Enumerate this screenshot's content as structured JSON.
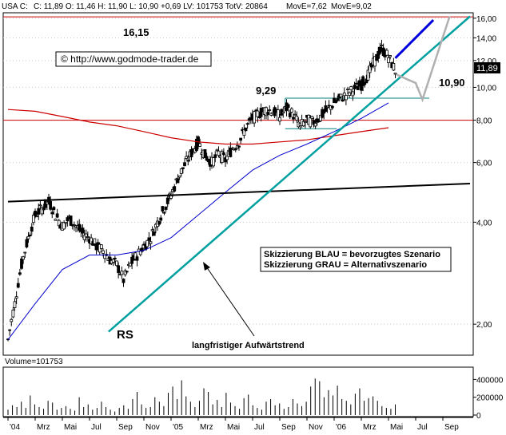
{
  "header": {
    "symbol": "USA C:",
    "close_label": "C: 11,89",
    "open_label": "O: 11,46",
    "high_label": "H: 11,90",
    "low_label": "L: 10,90",
    "change": "+0,69",
    "lv_label": "LV: 101753",
    "totv_label": "TotV: 20864",
    "move1": "MovE=7,62",
    "move2": "MovE=9,02",
    "move1_color": "#cc0000",
    "move2_color": "#0000cc"
  },
  "copyright": "© http://www.godmode-trader.de",
  "annotations": {
    "level_high": "16,15",
    "level_mid": "9,29",
    "level_target": "10,90",
    "rs": "RS",
    "trend": "langfristiger Aufwärtstrend",
    "legend_blue": "Skizzierung BLAU = bevorzugtes Szenario",
    "legend_grey": "Skizzierung GRAU = Alternativszenario"
  },
  "price_badge": "11,89",
  "volume_label": "Volume=101753",
  "chart_data": {
    "type": "candlestick",
    "y_scale": "log",
    "price_ticks": [
      "16,00",
      "14,00",
      "12,00",
      "10,00",
      "8,00",
      "6,00",
      "4,00",
      "2,00"
    ],
    "price_tick_values": [
      16,
      14,
      12,
      10,
      8,
      6,
      4,
      2
    ],
    "volume_ticks": [
      "400000",
      "200000",
      "0"
    ],
    "volume_tick_values": [
      400000,
      200000,
      0
    ],
    "x_ticks": [
      "'04",
      "Mrz",
      "Mai",
      "Jul",
      "Sep",
      "Nov",
      "'05",
      "Mrz",
      "Mai",
      "Jul",
      "Sep",
      "Nov",
      "'06",
      "Mrz",
      "Mai",
      "Jul",
      "Sep"
    ],
    "x_tick_index": [
      0,
      2,
      4,
      6,
      8,
      10,
      12,
      14,
      16,
      18,
      20,
      22,
      24,
      26,
      28,
      30,
      32
    ],
    "price_path": [
      [
        0,
        1.8
      ],
      [
        0.5,
        2.3
      ],
      [
        1,
        3.0
      ],
      [
        1.5,
        3.6
      ],
      [
        2,
        4.2
      ],
      [
        2.5,
        4.4
      ],
      [
        3,
        4.6
      ],
      [
        3.5,
        4.2
      ],
      [
        4,
        3.9
      ],
      [
        4.5,
        4.1
      ],
      [
        5,
        3.9
      ],
      [
        5.5,
        3.7
      ],
      [
        6,
        3.6
      ],
      [
        6.5,
        3.4
      ],
      [
        7,
        3.3
      ],
      [
        7.5,
        3.1
      ],
      [
        8,
        3.0
      ],
      [
        8.5,
        2.7
      ],
      [
        9,
        3.0
      ],
      [
        9.5,
        3.2
      ],
      [
        10,
        3.4
      ],
      [
        10.5,
        3.6
      ],
      [
        11,
        4.0
      ],
      [
        11.5,
        4.4
      ],
      [
        12,
        4.8
      ],
      [
        12.5,
        5.4
      ],
      [
        13,
        5.9
      ],
      [
        13.5,
        6.4
      ],
      [
        14,
        6.9
      ],
      [
        14.5,
        6.3
      ],
      [
        15,
        6.0
      ],
      [
        15.5,
        6.4
      ],
      [
        16,
        6.1
      ],
      [
        16.5,
        6.6
      ],
      [
        17,
        6.9
      ],
      [
        17.5,
        7.6
      ],
      [
        18,
        8.1
      ],
      [
        18.5,
        8.4
      ],
      [
        19,
        8.6
      ],
      [
        19.5,
        8.5
      ],
      [
        20,
        8.2
      ],
      [
        20.5,
        8.7
      ],
      [
        21,
        8.3
      ],
      [
        21.5,
        7.7
      ],
      [
        22,
        8.0
      ],
      [
        22.5,
        7.9
      ],
      [
        23,
        8.2
      ],
      [
        23.5,
        8.6
      ],
      [
        24,
        9.0
      ],
      [
        24.5,
        9.3
      ],
      [
        25,
        9.6
      ],
      [
        25.5,
        9.9
      ],
      [
        26,
        10.2
      ],
      [
        26.5,
        10.9
      ],
      [
        27,
        12.0
      ],
      [
        27.5,
        13.0
      ],
      [
        28,
        12.3
      ],
      [
        28.5,
        11.2
      ]
    ],
    "ma_red": [
      [
        0,
        8.6
      ],
      [
        2,
        8.5
      ],
      [
        4,
        8.2
      ],
      [
        6,
        7.9
      ],
      [
        8,
        7.7
      ],
      [
        10,
        7.4
      ],
      [
        12,
        7.1
      ],
      [
        14,
        6.9
      ],
      [
        16,
        6.8
      ],
      [
        18,
        6.8
      ],
      [
        20,
        6.9
      ],
      [
        22,
        7.0
      ],
      [
        24,
        7.2
      ],
      [
        26,
        7.4
      ],
      [
        28,
        7.6
      ]
    ],
    "ma_blue": [
      [
        0,
        1.8
      ],
      [
        2,
        2.3
      ],
      [
        4,
        2.9
      ],
      [
        6,
        3.2
      ],
      [
        8,
        3.2
      ],
      [
        10,
        3.3
      ],
      [
        12,
        3.6
      ],
      [
        14,
        4.2
      ],
      [
        16,
        4.9
      ],
      [
        18,
        5.7
      ],
      [
        20,
        6.3
      ],
      [
        22,
        6.8
      ],
      [
        24,
        7.4
      ],
      [
        26,
        8.1
      ],
      [
        28,
        9.0
      ]
    ],
    "resistance_high": 16.15,
    "red_line": 8.0,
    "black_trend": [
      [
        0,
        4.6
      ],
      [
        34,
        5.2
      ]
    ],
    "teal_trend": [
      [
        7.4,
        1.9
      ],
      [
        34,
        16.2
      ]
    ],
    "box_top": 9.29,
    "box_bottom": 7.55,
    "box_start": 20.4,
    "box_end": 31.0,
    "blue_scenario": [
      [
        28.5,
        12.2
      ],
      [
        31.3,
        15.8
      ]
    ],
    "grey_scenario": [
      [
        28.6,
        10.9
      ],
      [
        30.0,
        10.3
      ],
      [
        30.5,
        9.2
      ],
      [
        32.5,
        16.2
      ]
    ],
    "volume": [
      60,
      110,
      90,
      150,
      80,
      220,
      120,
      90,
      70,
      160,
      140,
      60,
      80,
      100,
      70,
      50,
      200,
      90,
      120,
      60,
      80,
      150,
      90,
      60,
      40,
      80,
      110,
      70,
      180,
      260,
      120,
      80,
      90,
      200,
      150,
      100,
      250,
      320,
      180,
      390,
      210,
      150,
      90,
      160,
      300,
      260,
      120,
      170,
      90,
      250,
      140,
      100,
      70,
      190,
      230,
      110,
      80,
      60,
      150,
      180,
      110,
      130,
      70,
      90,
      180,
      130,
      100,
      150,
      320,
      410,
      380,
      200,
      280,
      220,
      330,
      180,
      160,
      120,
      240,
      300,
      160,
      190,
      210,
      160,
      100,
      80,
      70,
      120
    ]
  }
}
